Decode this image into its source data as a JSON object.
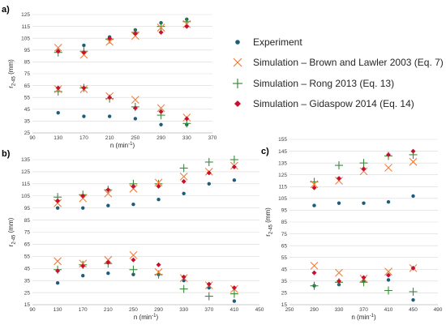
{
  "legend": {
    "items": [
      {
        "label": "Experiment",
        "color": "#1f5c7a",
        "marker": "dot-icon"
      },
      {
        "label": "Simulation – Brown and Lawler 2003 (Eq. 7)",
        "color": "#f07d3c",
        "marker": "x-icon"
      },
      {
        "label": "Simulation – Rong 2013 (Eq. 13)",
        "color": "#3b8a3b",
        "marker": "plus-icon"
      },
      {
        "label": "Simulation – Gidaspow 2014 (Eq. 14)",
        "color": "#c8102e",
        "marker": "diamond-icon"
      }
    ]
  },
  "chart_data": [
    {
      "panel": "a)",
      "type": "scatter",
      "xlabel": "n (min⁻¹)",
      "ylabel": "r2-45 (mm)",
      "xlim": [
        90,
        370
      ],
      "ylim": [
        25,
        125
      ],
      "xticks": [
        90,
        130,
        170,
        210,
        250,
        290,
        330,
        370
      ],
      "yticks": [
        25,
        35,
        45,
        55,
        65,
        75,
        85,
        95,
        105,
        115,
        125
      ],
      "grid": true,
      "series": [
        {
          "name": "Experiment",
          "marker": "dot",
          "color": "#1f5c7a",
          "points": [
            [
              130,
              94
            ],
            [
              170,
              99
            ],
            [
              210,
              106
            ],
            [
              250,
              112
            ],
            [
              290,
              118
            ],
            [
              330,
              121
            ],
            [
              130,
              42
            ],
            [
              170,
              39
            ],
            [
              210,
              39
            ],
            [
              250,
              37
            ],
            [
              290,
              32
            ],
            [
              330,
              32
            ]
          ]
        },
        {
          "name": "Simulation – Brown and Lawler 2003 (Eq. 7)",
          "marker": "x",
          "color": "#f07d3c",
          "points": [
            [
              130,
              97
            ],
            [
              170,
              91
            ],
            [
              210,
              102
            ],
            [
              250,
              107
            ],
            [
              290,
              114
            ],
            [
              330,
              117
            ],
            [
              130,
              62
            ],
            [
              170,
              62
            ],
            [
              210,
              56
            ],
            [
              250,
              53
            ],
            [
              290,
              46
            ],
            [
              330,
              38
            ]
          ]
        },
        {
          "name": "Simulation – Rong 2013 (Eq. 13)",
          "marker": "plus",
          "color": "#3b8a3b",
          "points": [
            [
              130,
              93
            ],
            [
              170,
              94
            ],
            [
              210,
              104
            ],
            [
              250,
              110
            ],
            [
              290,
              115
            ],
            [
              330,
              119
            ],
            [
              130,
              60
            ],
            [
              170,
              63
            ],
            [
              210,
              54
            ],
            [
              250,
              47
            ],
            [
              290,
              40
            ],
            [
              330,
              33
            ]
          ]
        },
        {
          "name": "Simulation – Gidaspow 2014 (Eq. 14)",
          "marker": "diamond",
          "color": "#c8102e",
          "points": [
            [
              130,
              94
            ],
            [
              170,
              93
            ],
            [
              210,
              105
            ],
            [
              250,
              109
            ],
            [
              290,
              110
            ],
            [
              330,
              115
            ],
            [
              130,
              63
            ],
            [
              170,
              63
            ],
            [
              210,
              55
            ],
            [
              250,
              46
            ],
            [
              290,
              43
            ],
            [
              330,
              37
            ]
          ]
        }
      ]
    },
    {
      "panel": "b)",
      "type": "scatter",
      "xlabel": "n (min⁻¹)",
      "ylabel": "r2-45 (mm)",
      "xlim": [
        90,
        450
      ],
      "ylim": [
        15,
        135
      ],
      "xticks": [
        90,
        130,
        170,
        210,
        250,
        290,
        330,
        370,
        410,
        450
      ],
      "yticks": [
        15,
        25,
        35,
        45,
        55,
        65,
        75,
        85,
        95,
        105,
        115,
        125,
        135
      ],
      "grid": true,
      "series": [
        {
          "name": "Experiment",
          "marker": "dot",
          "color": "#1f5c7a",
          "points": [
            [
              130,
              95
            ],
            [
              170,
              95
            ],
            [
              210,
              97
            ],
            [
              250,
              98
            ],
            [
              290,
              102
            ],
            [
              330,
              107
            ],
            [
              370,
              115
            ],
            [
              410,
              118
            ],
            [
              130,
              33
            ],
            [
              170,
              39
            ],
            [
              210,
              41
            ],
            [
              250,
              40
            ],
            [
              290,
              40
            ],
            [
              330,
              35
            ],
            [
              370,
              29
            ],
            [
              410,
              18
            ]
          ]
        },
        {
          "name": "Simulation – Brown and Lawler 2003 (Eq. 7)",
          "marker": "x",
          "color": "#f07d3c",
          "points": [
            [
              130,
              99
            ],
            [
              170,
              103
            ],
            [
              210,
              107
            ],
            [
              250,
              111
            ],
            [
              290,
              116
            ],
            [
              330,
              121
            ],
            [
              370,
              125
            ],
            [
              410,
              130
            ],
            [
              130,
              51
            ],
            [
              170,
              49
            ],
            [
              210,
              52
            ],
            [
              250,
              56
            ],
            [
              290,
              42
            ],
            [
              330,
              37
            ],
            [
              370,
              31
            ],
            [
              410,
              28
            ]
          ]
        },
        {
          "name": "Simulation – Rong 2013 (Eq. 13)",
          "marker": "plus",
          "color": "#3b8a3b",
          "points": [
            [
              130,
              104
            ],
            [
              170,
              106
            ],
            [
              210,
              110
            ],
            [
              250,
              115
            ],
            [
              290,
              115
            ],
            [
              330,
              128
            ],
            [
              370,
              133
            ],
            [
              410,
              135
            ],
            [
              130,
              44
            ],
            [
              170,
              48
            ],
            [
              210,
              49
            ],
            [
              250,
              44
            ],
            [
              290,
              40
            ],
            [
              330,
              28
            ],
            [
              370,
              22
            ],
            [
              410,
              24
            ]
          ]
        },
        {
          "name": "Simulation – Gidaspow 2014 (Eq. 14)",
          "marker": "diamond",
          "color": "#c8102e",
          "points": [
            [
              130,
              101
            ],
            [
              170,
              105
            ],
            [
              210,
              110
            ],
            [
              250,
              113
            ],
            [
              290,
              113
            ],
            [
              330,
              117
            ],
            [
              370,
              124
            ],
            [
              410,
              129
            ],
            [
              130,
              43
            ],
            [
              170,
              47
            ],
            [
              210,
              50
            ],
            [
              250,
              52
            ],
            [
              290,
              48
            ],
            [
              330,
              38
            ],
            [
              370,
              32
            ],
            [
              410,
              29
            ]
          ]
        }
      ]
    },
    {
      "panel": "c)",
      "type": "scatter",
      "xlabel": "n (min⁻¹)",
      "ylabel": "r2-45 (mm)",
      "xlim": [
        250,
        490
      ],
      "ylim": [
        15,
        155
      ],
      "xticks": [
        250,
        290,
        330,
        370,
        410,
        450,
        490
      ],
      "yticks": [
        15,
        25,
        35,
        45,
        55,
        65,
        75,
        85,
        95,
        105,
        115,
        125,
        135,
        145,
        155
      ],
      "grid": true,
      "series": [
        {
          "name": "Experiment",
          "marker": "dot",
          "color": "#1f5c7a",
          "points": [
            [
              290,
              99
            ],
            [
              330,
              101
            ],
            [
              370,
              101
            ],
            [
              410,
              102
            ],
            [
              450,
              107
            ],
            [
              290,
              31
            ],
            [
              330,
              32
            ],
            [
              370,
              35
            ],
            [
              410,
              36
            ],
            [
              450,
              19
            ]
          ]
        },
        {
          "name": "Simulation – Brown and Lawler 2003 (Eq. 7)",
          "marker": "x",
          "color": "#f07d3c",
          "points": [
            [
              290,
              117
            ],
            [
              330,
              120
            ],
            [
              370,
              128
            ],
            [
              410,
              131
            ],
            [
              450,
              136
            ],
            [
              290,
              48
            ],
            [
              330,
              42
            ],
            [
              370,
              37
            ],
            [
              410,
              43
            ],
            [
              450,
              46
            ]
          ]
        },
        {
          "name": "Simulation – Rong 2013 (Eq. 13)",
          "marker": "plus",
          "color": "#3b8a3b",
          "points": [
            [
              290,
              119
            ],
            [
              330,
              133
            ],
            [
              370,
              135
            ],
            [
              410,
              141
            ],
            [
              450,
              142
            ],
            [
              290,
              31
            ],
            [
              330,
              34
            ],
            [
              370,
              34
            ],
            [
              410,
              27
            ],
            [
              450,
              26
            ]
          ]
        },
        {
          "name": "Simulation – Gidaspow 2014 (Eq. 14)",
          "marker": "diamond",
          "color": "#c8102e",
          "points": [
            [
              290,
              114
            ],
            [
              330,
              122
            ],
            [
              370,
              130
            ],
            [
              410,
              142
            ],
            [
              450,
              145
            ],
            [
              290,
              42
            ],
            [
              330,
              35
            ],
            [
              370,
              38
            ],
            [
              410,
              40
            ],
            [
              450,
              46
            ]
          ]
        }
      ]
    }
  ]
}
